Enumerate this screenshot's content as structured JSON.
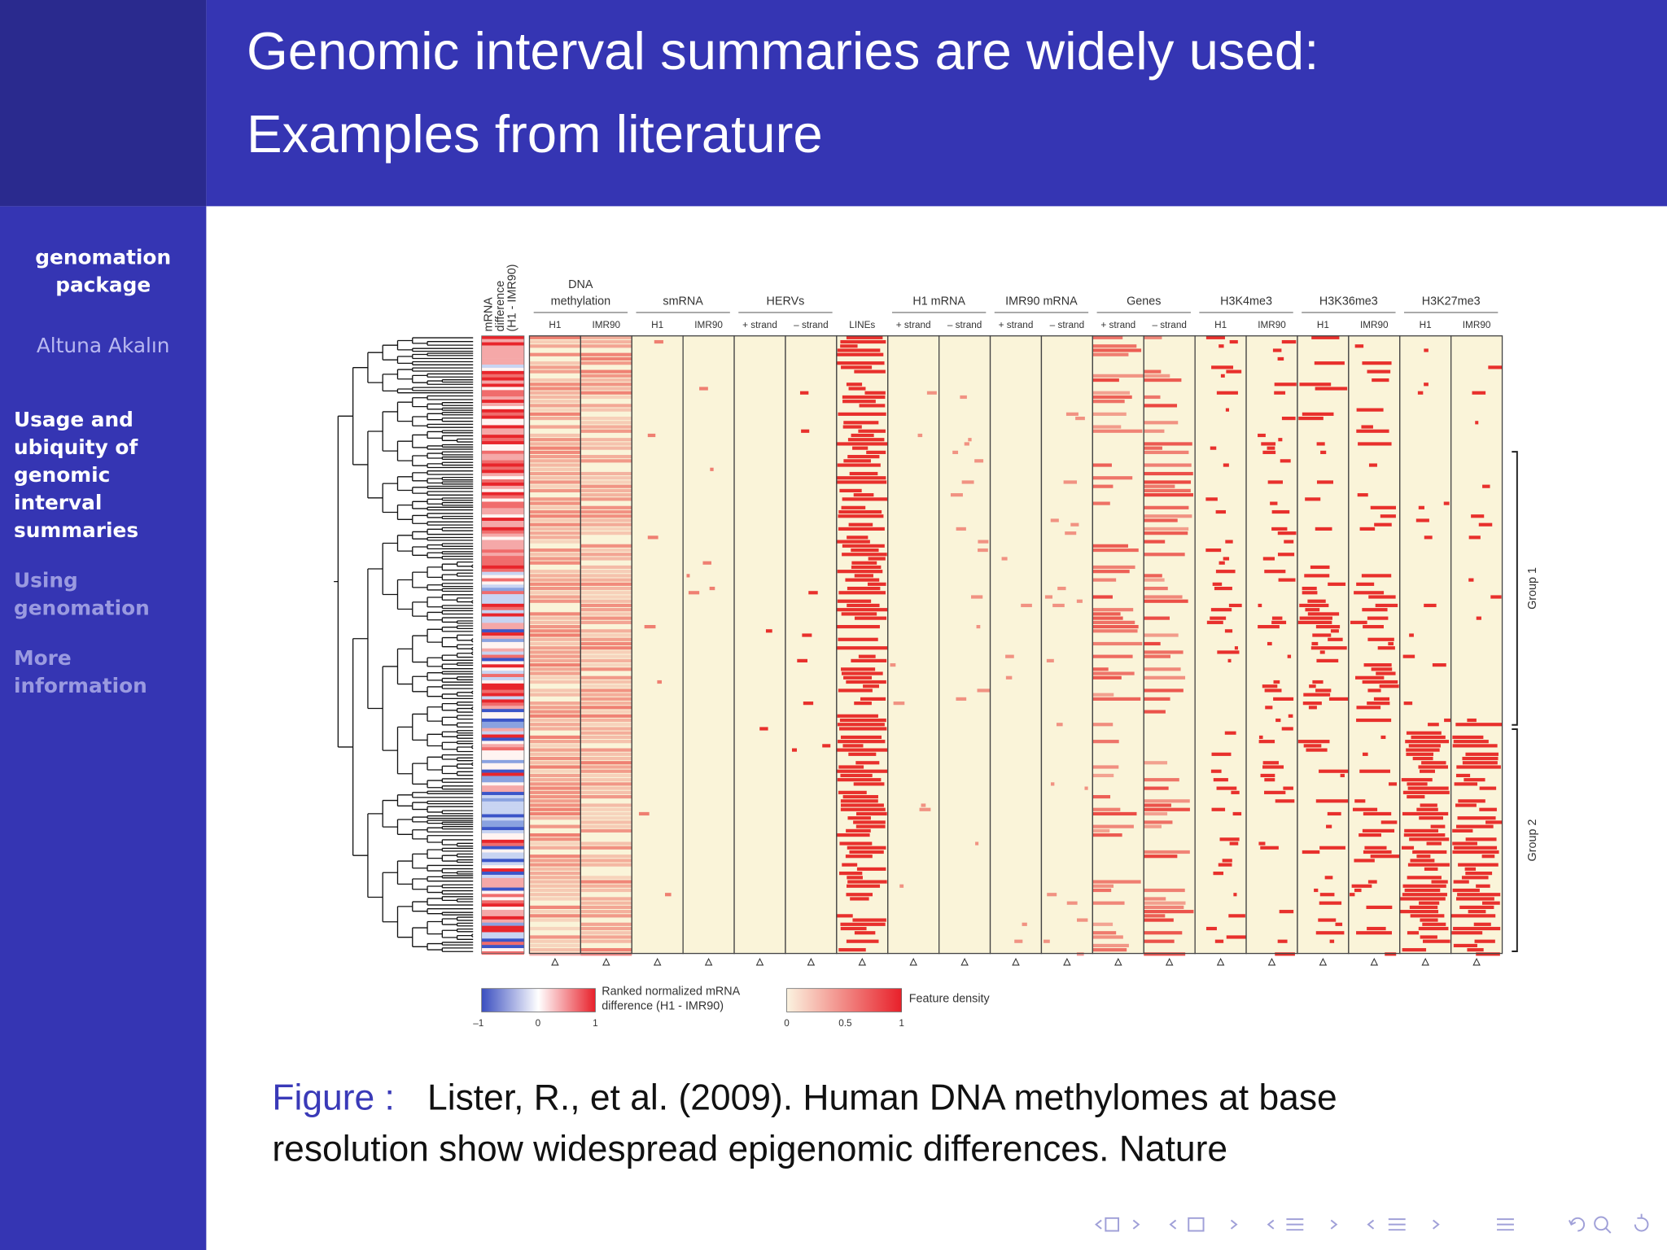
{
  "title": [
    "Genomic interval summaries are widely used:",
    "Examples from literature"
  ],
  "sidebar": {
    "package": [
      "genomation",
      "package"
    ],
    "author": "Altuna Akalın",
    "sections": [
      {
        "lines": [
          "Usage and",
          "ubiquity of",
          "genomic",
          "interval",
          "summaries"
        ],
        "current": true
      },
      {
        "lines": [
          "Using",
          "genomation"
        ],
        "current": false
      },
      {
        "lines": [
          "More",
          "information"
        ],
        "current": false
      }
    ]
  },
  "figure": {
    "row_label": [
      "mRNA",
      "difference",
      "(H1 - IMR90)"
    ],
    "groups": [
      {
        "name": [
          "DNA",
          "methylation"
        ],
        "columns": [
          "H1",
          "IMR90"
        ]
      },
      {
        "name": [
          "smRNA"
        ],
        "columns": [
          "H1",
          "IMR90"
        ]
      },
      {
        "name": [
          "HERVs"
        ],
        "columns": [
          "+ strand",
          "– strand"
        ]
      },
      {
        "columns": [
          "LINEs"
        ]
      },
      {
        "name": [
          "H1 mRNA"
        ],
        "columns": [
          "+ strand",
          "– strand"
        ]
      },
      {
        "name": [
          "IMR90 mRNA"
        ],
        "columns": [
          "+ strand",
          "– strand"
        ]
      },
      {
        "name": [
          "Genes"
        ],
        "columns": [
          "+ strand",
          "– strand"
        ]
      },
      {
        "name": [
          "H3K4me3"
        ],
        "columns": [
          "H1",
          "IMR90"
        ]
      },
      {
        "name": [
          "H3K36me3"
        ],
        "columns": [
          "H1",
          "IMR90"
        ]
      },
      {
        "name": [
          "H3K27me3"
        ],
        "columns": [
          "H1",
          "IMR90"
        ]
      }
    ],
    "cluster_groups": [
      "Group 1",
      "Group 2"
    ],
    "legend_mrna": {
      "title": [
        "Ranked normalized mRNA",
        "difference (H1 - IMR90)"
      ],
      "ticks": [
        "–1",
        "0",
        "1"
      ]
    },
    "legend_density": {
      "title": "Feature density",
      "ticks": [
        "0",
        "0.5",
        "1"
      ]
    }
  },
  "caption": {
    "label": "Figure :",
    "lines": [
      "Lister, R., et al. (2009). Human DNA methylomes at base",
      "resolution show widespread epigenomic differences. Nature"
    ]
  }
}
